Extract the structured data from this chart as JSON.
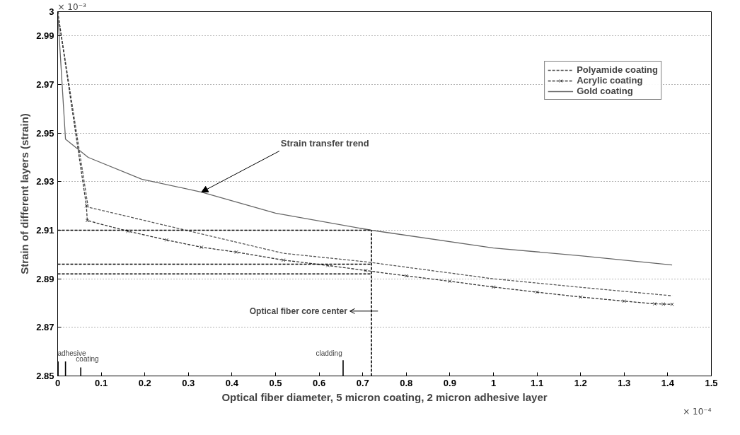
{
  "chart_data": {
    "type": "line",
    "xlabel": "Optical fiber diameter, 5 micron coating, 2 micron adhesive layer",
    "ylabel": "Strain of different layers (strain)",
    "xlim": [
      0,
      1.5
    ],
    "ylim": [
      2.85,
      3
    ],
    "xticks": [
      0,
      0.1,
      0.2,
      0.3,
      0.4,
      0.5,
      0.6,
      0.7,
      0.8,
      0.9,
      1,
      1.1,
      1.2,
      1.3,
      1.4,
      1.5
    ],
    "yticks": [
      2.85,
      2.87,
      2.89,
      2.91,
      2.93,
      2.95,
      2.97,
      2.99,
      3
    ],
    "grid": "y",
    "legend": "top right",
    "series": [
      {
        "name": "Polyamide coating",
        "color": "#555555",
        "line_style": "dashed",
        "x": [
          0,
          0.07,
          0.247,
          0.518,
          0.707,
          1.0,
          1.2,
          1.41
        ],
        "values": [
          3.0,
          2.9195,
          2.912,
          2.9005,
          2.897,
          2.89,
          2.8865,
          2.883
        ]
      },
      {
        "name": "Acrylic coating",
        "color": "#333333",
        "line_style": "dashed",
        "marker": "cross",
        "x": [
          0,
          0.066,
          0.068,
          0.161,
          0.25,
          0.33,
          0.41,
          0.518,
          0.62,
          0.707,
          0.8,
          0.9,
          1.0,
          1.1,
          1.2,
          1.3,
          1.37,
          1.39,
          1.41
        ],
        "values": [
          3.0,
          2.92,
          2.914,
          2.9096,
          2.906,
          2.903,
          2.901,
          2.8977,
          2.8955,
          2.8934,
          2.8912,
          2.889,
          2.8866,
          2.8845,
          2.8825,
          2.8808,
          2.8797,
          2.8796,
          2.8795
        ]
      },
      {
        "name": "Gold coating",
        "color": "#666666",
        "line_style": "solid",
        "x": [
          0,
          0.018,
          0.07,
          0.193,
          0.33,
          0.5,
          0.72,
          1.0,
          1.2,
          1.41
        ],
        "values": [
          3.0,
          2.9475,
          2.94,
          2.931,
          2.9257,
          2.917,
          2.91,
          2.9027,
          2.8995,
          2.8957
        ]
      },
      {
        "color": "#000000",
        "line_style": "dashed",
        "x": [
          0,
          0.72
        ],
        "values": [
          2.91,
          2.91
        ]
      },
      {
        "color": "#000000",
        "line_style": "dashed",
        "x": [
          0,
          0.72
        ],
        "values": [
          2.896,
          2.896
        ]
      },
      {
        "color": "#000000",
        "line_style": "dashed",
        "x": [
          0,
          0.72
        ],
        "values": [
          2.892,
          2.892
        ]
      },
      {
        "color": "#000000",
        "line_style": "dashed",
        "x": [
          0.72,
          0.72
        ],
        "values": [
          2.85,
          2.91
        ]
      },
      {
        "color": "#000000",
        "line_style": "solid",
        "x": [
          0.001,
          0.001
        ],
        "values": [
          2.85,
          2.856
        ]
      },
      {
        "color": "#000000",
        "line_style": "solid",
        "x": [
          0.018,
          0.018
        ],
        "values": [
          2.85,
          2.856
        ]
      },
      {
        "color": "#000000",
        "line_style": "solid",
        "x": [
          0.053,
          0.053
        ],
        "values": [
          2.85,
          2.8535
        ]
      },
      {
        "color": "#000000",
        "line_style": "solid",
        "x": [
          0.655,
          0.655
        ],
        "values": [
          2.85,
          2.8565
        ]
      }
    ],
    "annotations": [
      {
        "text": "Strain transfer trend",
        "x": 0.33,
        "y": 2.9257
      },
      "Optical fiber core center",
      "adhesive",
      "coating",
      "cladding",
      "× 10⁻³",
      "× 10⁻⁴"
    ]
  }
}
